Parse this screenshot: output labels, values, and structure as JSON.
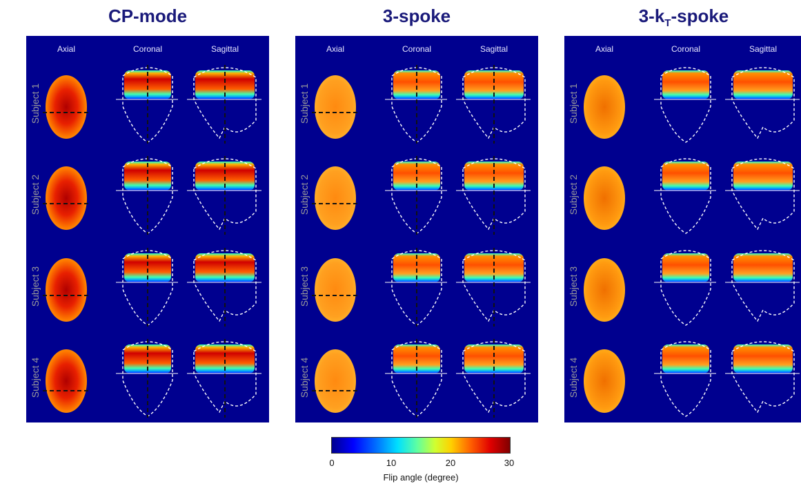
{
  "panels": [
    {
      "title": "CP-mode"
    },
    {
      "title": "3-spoke"
    },
    {
      "title_main": "3-k",
      "title_sub": "T",
      "title_rest": "-spoke"
    }
  ],
  "columns": [
    "Axial",
    "Coronal",
    "Sagittal"
  ],
  "rows": [
    "Subject 1",
    "Subject 2",
    "Subject 3",
    "Subject 4"
  ],
  "colorbar": {
    "ticks": [
      "0",
      "10",
      "20",
      "30"
    ],
    "label": "Flip angle (degree)",
    "colors": [
      "#00008f",
      "#0000ff",
      "#00e0ff",
      "#ffd000",
      "#e00000",
      "#800000"
    ]
  }
}
